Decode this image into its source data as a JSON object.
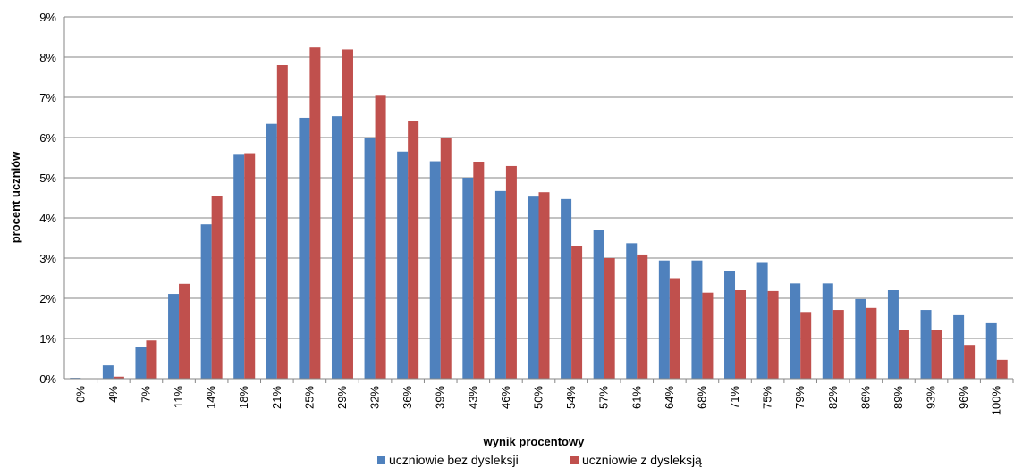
{
  "chart_data": {
    "type": "bar",
    "xlabel": "wynik procentowy",
    "ylabel": "procent  uczniów",
    "ylim": [
      0,
      9
    ],
    "yticks": [
      "0%",
      "1%",
      "2%",
      "3%",
      "4%",
      "5%",
      "6%",
      "7%",
      "8%",
      "9%"
    ],
    "grid": true,
    "legend_position": "bottom",
    "categories": [
      "0%",
      "4%",
      "7%",
      "11%",
      "14%",
      "18%",
      "21%",
      "25%",
      "29%",
      "32%",
      "36%",
      "39%",
      "43%",
      "46%",
      "50%",
      "54%",
      "57%",
      "61%",
      "64%",
      "68%",
      "71%",
      "75%",
      "79%",
      "82%",
      "86%",
      "89%",
      "93%",
      "96%",
      "100%"
    ],
    "series": [
      {
        "name": "uczniowie bez dysleksji",
        "color": "#4F81BD",
        "values": [
          0.02,
          0.33,
          0.8,
          2.11,
          3.84,
          5.57,
          6.34,
          6.49,
          6.53,
          6.0,
          5.65,
          5.41,
          5.0,
          4.67,
          4.53,
          4.47,
          3.71,
          3.37,
          2.94,
          2.94,
          2.67,
          2.9,
          2.37,
          2.37,
          1.98,
          2.2,
          1.71,
          1.58,
          1.38
        ]
      },
      {
        "name": "uczniowie z dysleksją",
        "color": "#C0504D",
        "values": [
          0.0,
          0.05,
          0.95,
          2.36,
          4.55,
          5.61,
          7.8,
          8.24,
          8.19,
          7.06,
          6.42,
          6.0,
          5.4,
          5.29,
          4.64,
          3.31,
          3.0,
          3.09,
          2.5,
          2.14,
          2.2,
          2.18,
          1.66,
          1.71,
          1.76,
          1.21,
          1.21,
          0.84,
          0.47
        ]
      }
    ]
  }
}
